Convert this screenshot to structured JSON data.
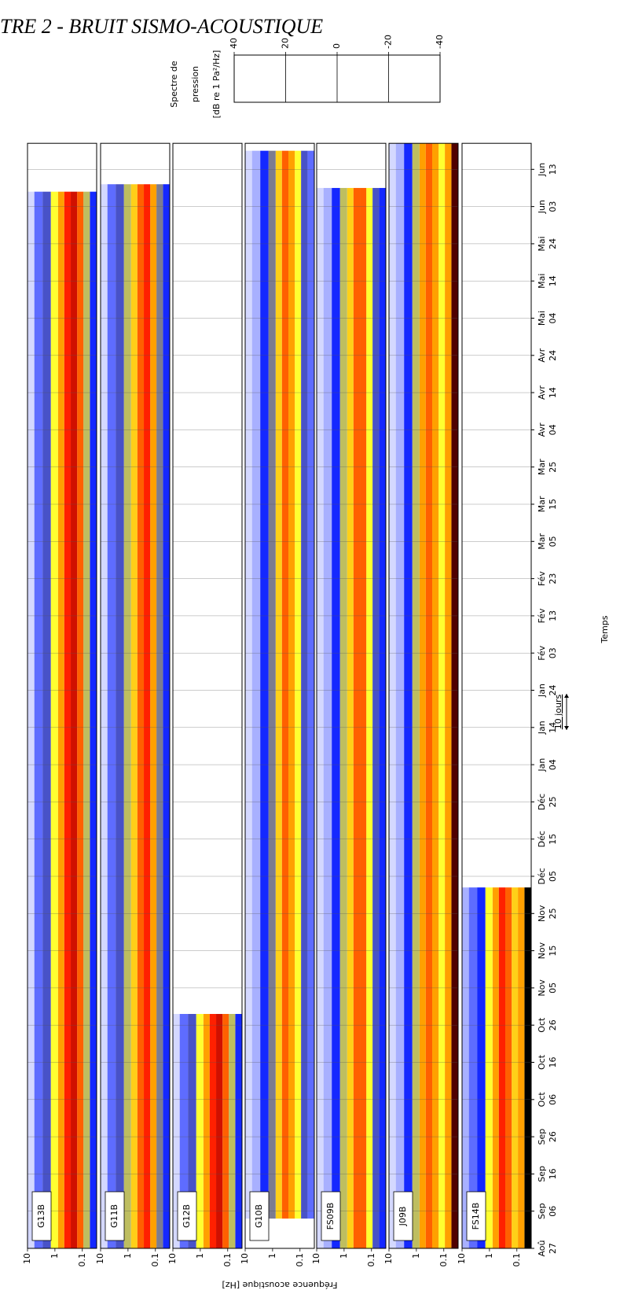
{
  "header": "TRE 2 - BRUIT SISMO-ACOUSTIQUE",
  "chart_data": {
    "type": "spectrogram",
    "xlabel": "Temps",
    "ylabel": "Fréquence acoustique [Hz]",
    "scale_bar_label": "10 jours",
    "xlim": [
      0,
      297
    ],
    "xticks": [
      {
        "value": 0,
        "label": "27"
      },
      {
        "value": 10,
        "label": "06"
      },
      {
        "value": 20,
        "label": "16"
      },
      {
        "value": 30,
        "label": "26"
      },
      {
        "value": 40,
        "label": "06"
      },
      {
        "value": 50,
        "label": "16"
      },
      {
        "value": 60,
        "label": "26"
      },
      {
        "value": 70,
        "label": "05"
      },
      {
        "value": 80,
        "label": "15"
      },
      {
        "value": 90,
        "label": "25"
      },
      {
        "value": 100,
        "label": "05"
      },
      {
        "value": 110,
        "label": "15"
      },
      {
        "value": 120,
        "label": "25"
      },
      {
        "value": 130,
        "label": "04"
      },
      {
        "value": 140,
        "label": "14"
      },
      {
        "value": 150,
        "label": "24"
      },
      {
        "value": 160,
        "label": "03"
      },
      {
        "value": 170,
        "label": "13"
      },
      {
        "value": 180,
        "label": "23"
      },
      {
        "value": 190,
        "label": "05"
      },
      {
        "value": 200,
        "label": "15"
      },
      {
        "value": 210,
        "label": "25"
      },
      {
        "value": 220,
        "label": "04"
      },
      {
        "value": 230,
        "label": "14"
      },
      {
        "value": 240,
        "label": "24"
      },
      {
        "value": 250,
        "label": "04"
      },
      {
        "value": 260,
        "label": "14"
      },
      {
        "value": 270,
        "label": "24"
      },
      {
        "value": 280,
        "label": "03"
      },
      {
        "value": 290,
        "label": "13"
      }
    ],
    "xtick_months": [
      "Aoû",
      "Sep",
      "Sep",
      "Sep",
      "Oct",
      "Oct",
      "Oct",
      "Nov",
      "Nov",
      "Nov",
      "Déc",
      "Déc",
      "Déc",
      "Jan",
      "Jan",
      "Jan",
      "Fév",
      "Fév",
      "Fév",
      "Mar",
      "Mar",
      "Mar",
      "Avr",
      "Avr",
      "Avr",
      "Mai",
      "Mai",
      "Mai",
      "Jun",
      "Jun"
    ],
    "log_y": true,
    "ylim": [
      0.03,
      10
    ],
    "yticks": [
      10,
      1,
      0.1
    ],
    "grid": true,
    "frequencies": [
      0.04,
      0.07,
      0.12,
      0.2,
      0.35,
      0.6,
      1,
      2,
      4,
      8
    ],
    "panels": [
      {
        "name": "G13B",
        "start": 0,
        "end": 284,
        "levels": [
          -20,
          -5,
          15,
          25,
          20,
          10,
          0,
          -15,
          -25,
          -35
        ]
      },
      {
        "name": "G11B",
        "start": 0,
        "end": 286,
        "levels": [
          -20,
          -10,
          10,
          20,
          15,
          5,
          -5,
          -15,
          -25,
          -35
        ]
      },
      {
        "name": "G12B",
        "start": 0,
        "end": 63,
        "levels": [
          -20,
          -5,
          15,
          25,
          20,
          10,
          0,
          -15,
          -25,
          -35
        ]
      },
      {
        "name": "G10B",
        "start": 8,
        "end": 295,
        "levels": [
          -25,
          -15,
          0,
          10,
          15,
          5,
          -10,
          -20,
          -30,
          -35
        ]
      },
      {
        "name": "FS09B",
        "start": 0,
        "end": 285,
        "levels": [
          -20,
          -15,
          0,
          15,
          15,
          5,
          -5,
          -20,
          -30,
          -35
        ]
      },
      {
        "name": "J09B",
        "start": 0,
        "end": 297,
        "levels": [
          35,
          10,
          0,
          10,
          15,
          10,
          -5,
          -20,
          -30,
          -35
        ]
      },
      {
        "name": "FS14B",
        "start": 0,
        "end": 97,
        "levels": [
          40,
          10,
          5,
          15,
          20,
          10,
          0,
          -20,
          -25,
          -30
        ]
      }
    ],
    "colorbar": {
      "label": [
        "Spectre de",
        "pression",
        "[dB re 1 Pa²/Hz]"
      ],
      "lim": [
        -40,
        40
      ],
      "ticks": [
        40,
        20,
        0,
        -20,
        -40
      ],
      "colormap": [
        {
          "value": -40,
          "color": "#ffffff"
        },
        {
          "value": -30,
          "color": "#a8b0ff"
        },
        {
          "value": -20,
          "color": "#1428ff"
        },
        {
          "value": -10,
          "color": "#7c7c90"
        },
        {
          "value": 0,
          "color": "#ffff30"
        },
        {
          "value": 10,
          "color": "#ffa000"
        },
        {
          "value": 20,
          "color": "#ff2000"
        },
        {
          "value": 30,
          "color": "#a00000"
        },
        {
          "value": 40,
          "color": "#000000"
        }
      ]
    }
  }
}
